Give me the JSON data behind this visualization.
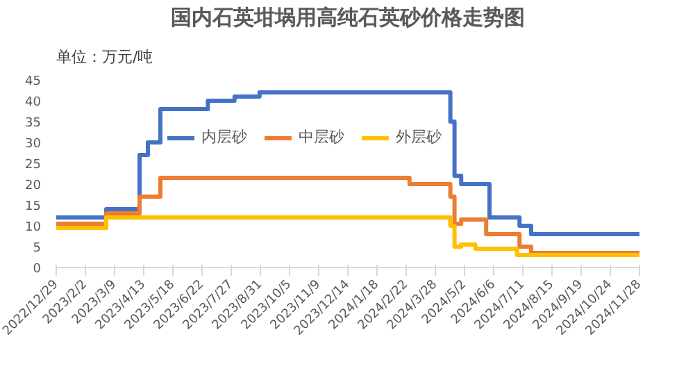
{
  "chart_data": {
    "type": "step",
    "title": "国内石英坩埚用高纯石英砂价格走势图",
    "ylabel": "单位：万元/吨",
    "xlim": [
      "2022-12-29",
      "2024-11-28"
    ],
    "xticks": [
      {
        "value": "2022-12-29",
        "label": "2022/12/29"
      },
      {
        "value": "2023-02-02",
        "label": "2023/2/2"
      },
      {
        "value": "2023-03-09",
        "label": "2023/3/9"
      },
      {
        "value": "2023-04-13",
        "label": "2023/4/13"
      },
      {
        "value": "2023-05-18",
        "label": "2023/5/18"
      },
      {
        "value": "2023-06-22",
        "label": "2023/6/22"
      },
      {
        "value": "2023-07-27",
        "label": "2023/7/27"
      },
      {
        "value": "2023-08-31",
        "label": "2023/8/31"
      },
      {
        "value": "2023-10-05",
        "label": "2023/10/5"
      },
      {
        "value": "2023-11-09",
        "label": "2023/11/9"
      },
      {
        "value": "2023-12-14",
        "label": "2023/12/14"
      },
      {
        "value": "2024-01-18",
        "label": "2024/1/18"
      },
      {
        "value": "2024-02-22",
        "label": "2024/2/22"
      },
      {
        "value": "2024-03-28",
        "label": "2024/3/28"
      },
      {
        "value": "2024-05-02",
        "label": "2024/5/2"
      },
      {
        "value": "2024-06-06",
        "label": "2024/6/6"
      },
      {
        "value": "2024-07-11",
        "label": "2024/7/11"
      },
      {
        "value": "2024-08-15",
        "label": "2024/8/15"
      },
      {
        "value": "2024-09-19",
        "label": "2024/9/19"
      },
      {
        "value": "2024-10-24",
        "label": "2024/10/24"
      },
      {
        "value": "2024-11-28",
        "label": "2024/11/28"
      }
    ],
    "ylim": [
      0,
      45
    ],
    "yticks": [
      0,
      5,
      10,
      15,
      20,
      25,
      30,
      35,
      40,
      45
    ],
    "grid": false,
    "legend": "top",
    "line_style": "solid",
    "series": [
      {
        "name": "内层砂",
        "color": "#4472c4",
        "x": [
          "2022-12-29",
          "2023-02-27",
          "2023-04-08",
          "2023-04-18",
          "2023-05-03",
          "2023-06-29",
          "2023-07-31",
          "2023-08-30",
          "2024-04-15",
          "2024-04-20",
          "2024-04-28",
          "2024-06-01",
          "2024-07-07",
          "2024-07-21",
          "2024-11-28"
        ],
        "values": [
          12,
          14,
          27,
          30,
          38,
          40,
          41,
          42,
          35,
          22,
          20,
          12,
          10,
          8,
          7.5
        ]
      },
      {
        "name": "中层砂",
        "color": "#ed7d31",
        "x": [
          "2022-12-29",
          "2023-02-27",
          "2023-04-08",
          "2023-05-03",
          "2024-02-26",
          "2024-04-15",
          "2024-04-20",
          "2024-04-28",
          "2024-05-28",
          "2024-07-07",
          "2024-07-21",
          "2024-11-28"
        ],
        "values": [
          10.5,
          13,
          17,
          21.5,
          20,
          17,
          10.5,
          11.5,
          8,
          5,
          3.5,
          3.5
        ]
      },
      {
        "name": "外层砂",
        "color": "#ffc000",
        "x": [
          "2022-12-29",
          "2023-02-27",
          "2024-04-15",
          "2024-04-20",
          "2024-04-28",
          "2024-05-15",
          "2024-07-04",
          "2024-11-28"
        ],
        "values": [
          9.5,
          12,
          10,
          5,
          5.5,
          4.5,
          3,
          3
        ]
      }
    ]
  }
}
